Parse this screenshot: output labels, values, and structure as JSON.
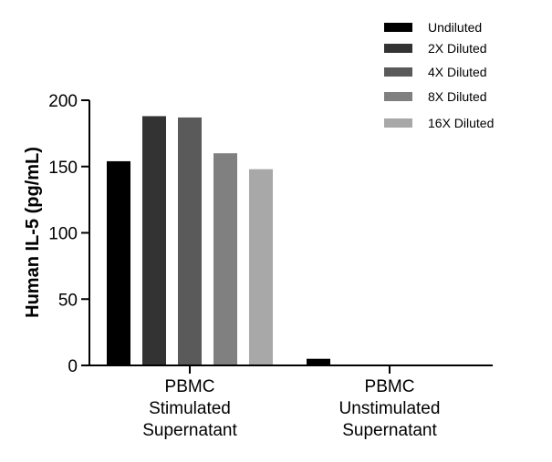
{
  "chart_data": {
    "type": "bar",
    "title": "",
    "xlabel": "",
    "ylabel": "Human IL-5 (pg/mL)",
    "ylim": [
      0,
      200
    ],
    "yticks": [
      0,
      50,
      100,
      150,
      200
    ],
    "categories": [
      [
        "PBMC",
        "Stimulated",
        "Supernatant"
      ],
      [
        "PBMC",
        "Unstimulated",
        "Supernatant"
      ]
    ],
    "series": [
      {
        "name": "Undiluted",
        "color": "#000000",
        "values": [
          154,
          5
        ]
      },
      {
        "name": "2X Diluted",
        "color": "#333333",
        "values": [
          188,
          0
        ]
      },
      {
        "name": "4X Diluted",
        "color": "#5a5a5a",
        "values": [
          187,
          0
        ]
      },
      {
        "name": "8X Diluted",
        "color": "#808080",
        "values": [
          160,
          0
        ]
      },
      {
        "name": "16X Diluted",
        "color": "#a8a8a8",
        "values": [
          148,
          0
        ]
      }
    ],
    "legend_position": "top-right",
    "grid": false
  }
}
